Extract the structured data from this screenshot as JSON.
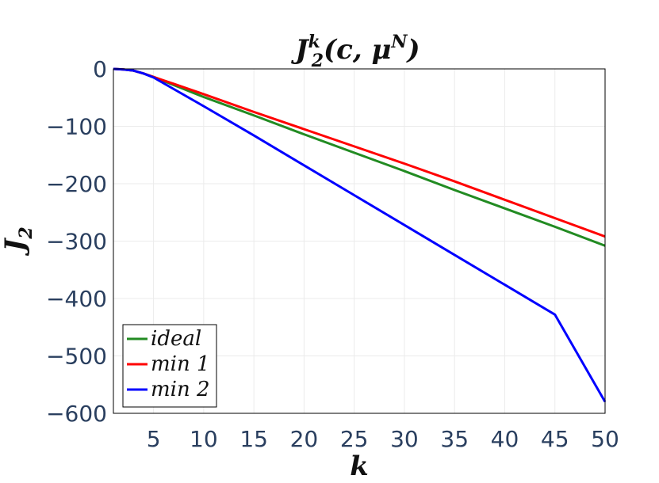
{
  "chart_data": {
    "type": "line",
    "title": "J_2^k(c, μ^N)",
    "title_parts": {
      "base": "J",
      "sub": "2",
      "sup": "k",
      "args_open": "(c, μ",
      "args_sup": "N",
      "args_close": ")"
    },
    "xlabel": "k",
    "ylabel": "J",
    "ylabel_sub": "2",
    "xlim": [
      1,
      50
    ],
    "ylim": [
      -600,
      0
    ],
    "grid": true,
    "legend_position": "bottom-left",
    "x_ticks": [
      5,
      10,
      15,
      20,
      25,
      30,
      35,
      40,
      45,
      50
    ],
    "x_tick_labels": [
      "5",
      "10",
      "15",
      "20",
      "25",
      "30",
      "35",
      "40",
      "45",
      "50"
    ],
    "y_ticks": [
      0,
      -100,
      -200,
      -300,
      -400,
      -500,
      -600
    ],
    "y_tick_labels": [
      "0",
      "−100",
      "−200",
      "−300",
      "−400",
      "−500",
      "−600"
    ],
    "x": [
      1,
      2,
      3,
      4,
      5,
      6,
      7,
      8,
      9,
      10,
      15,
      20,
      25,
      30,
      35,
      40,
      45,
      50
    ],
    "series": [
      {
        "name": "ideal",
        "color": "#228b22",
        "values": [
          0,
          -1,
          -3,
          -8,
          -14,
          -21,
          -28,
          -35,
          -42,
          -49,
          -81,
          -114,
          -146,
          -178,
          -211,
          -243,
          -275,
          -308
        ]
      },
      {
        "name": "min 1",
        "color": "#ff0000",
        "values": [
          0,
          -1,
          -3,
          -8,
          -14,
          -20,
          -26,
          -32,
          -38,
          -44,
          -75,
          -105,
          -135,
          -165,
          -196,
          -228,
          -260,
          -292
        ]
      },
      {
        "name": "min 2",
        "color": "#0000ff",
        "values": [
          0,
          -1,
          -3,
          -8,
          -15,
          -25,
          -35,
          -45,
          -55,
          -65,
          -116,
          -168,
          -220,
          -272,
          -324,
          -376,
          -428,
          -580
        ]
      }
    ]
  }
}
